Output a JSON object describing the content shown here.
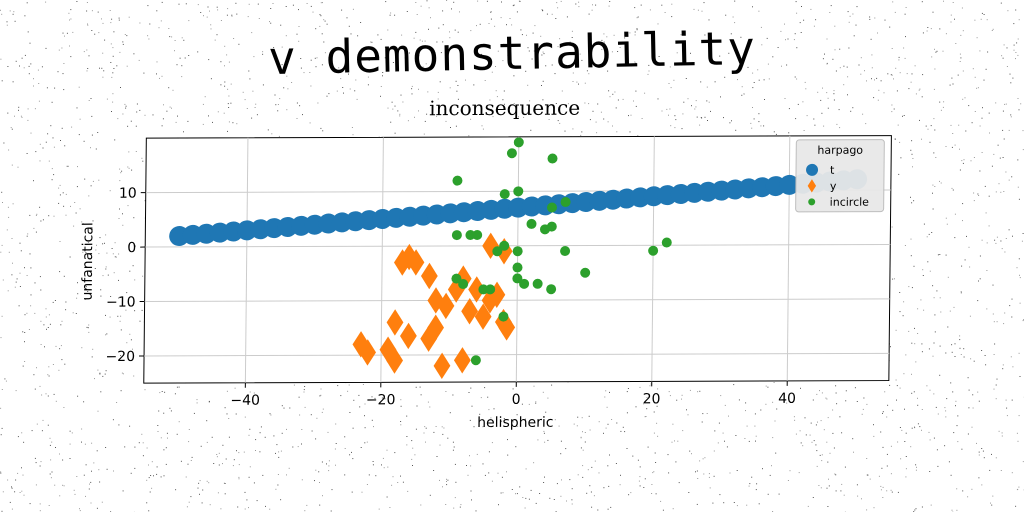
{
  "title": "v demonstrability",
  "chart_data": {
    "type": "scatter",
    "title": "inconsequence",
    "xlabel": "helispheric",
    "ylabel": "unfanatical",
    "xlim": [
      -55,
      55
    ],
    "ylim": [
      -25,
      20
    ],
    "xticks": [
      -40,
      -20,
      0,
      20,
      40
    ],
    "yticks": [
      -20,
      -10,
      0,
      10
    ],
    "grid": true,
    "legend": {
      "title": "harpago",
      "placement": "top-right"
    },
    "series": [
      {
        "name": "t",
        "marker": "circle",
        "color": "#1f77b4",
        "size": 10,
        "points": [
          [
            -50.0,
            2.0
          ],
          [
            -48.0,
            2.2
          ],
          [
            -46.0,
            2.4
          ],
          [
            -44.0,
            2.6
          ],
          [
            -42.0,
            2.8
          ],
          [
            -40.0,
            3.0
          ],
          [
            -38.0,
            3.2
          ],
          [
            -36.0,
            3.4
          ],
          [
            -34.0,
            3.6
          ],
          [
            -32.0,
            3.8
          ],
          [
            -30.0,
            4.0
          ],
          [
            -28.0,
            4.2
          ],
          [
            -26.0,
            4.4
          ],
          [
            -24.0,
            4.6
          ],
          [
            -22.0,
            4.8
          ],
          [
            -20.0,
            5.0
          ],
          [
            -18.0,
            5.2
          ],
          [
            -16.0,
            5.4
          ],
          [
            -14.0,
            5.6
          ],
          [
            -12.0,
            5.8
          ],
          [
            -10.0,
            6.0
          ],
          [
            -8.0,
            6.2
          ],
          [
            -6.0,
            6.4
          ],
          [
            -4.0,
            6.6
          ],
          [
            -2.0,
            6.8
          ],
          [
            0.0,
            7.0
          ],
          [
            2.0,
            7.2
          ],
          [
            4.0,
            7.4
          ],
          [
            6.0,
            7.6
          ],
          [
            8.0,
            7.8
          ],
          [
            10.0,
            8.0
          ],
          [
            12.0,
            8.2
          ],
          [
            14.0,
            8.4
          ],
          [
            16.0,
            8.6
          ],
          [
            18.0,
            8.8
          ],
          [
            20.0,
            9.0
          ],
          [
            22.0,
            9.2
          ],
          [
            24.0,
            9.4
          ],
          [
            26.0,
            9.6
          ],
          [
            28.0,
            9.8
          ],
          [
            30.0,
            10.0
          ],
          [
            32.0,
            10.2
          ],
          [
            34.0,
            10.4
          ],
          [
            36.0,
            10.6
          ],
          [
            38.0,
            10.8
          ],
          [
            40.0,
            11.0
          ],
          [
            42.0,
            11.2
          ],
          [
            44.0,
            11.4
          ],
          [
            46.0,
            11.6
          ],
          [
            48.0,
            11.8
          ],
          [
            50.0,
            12.0
          ]
        ]
      },
      {
        "name": "y",
        "marker": "diamond",
        "color": "#ff7f0e",
        "size": 12,
        "points": [
          [
            -23,
            -18
          ],
          [
            -22,
            -19.5
          ],
          [
            -19,
            -19
          ],
          [
            -18,
            -21
          ],
          [
            -18,
            -14
          ],
          [
            -16,
            -16.5
          ],
          [
            -13,
            -17
          ],
          [
            -12,
            -15
          ],
          [
            -11,
            -22
          ],
          [
            -10.5,
            -11
          ],
          [
            -12,
            -10
          ],
          [
            -9,
            -8
          ],
          [
            -8,
            -6
          ],
          [
            -7,
            -12
          ],
          [
            -6,
            -8
          ],
          [
            -5,
            -13
          ],
          [
            -4,
            -10
          ],
          [
            -3,
            -9
          ],
          [
            -2,
            -14
          ],
          [
            -1.5,
            -15
          ],
          [
            -17,
            -3
          ],
          [
            -16,
            -2
          ],
          [
            -15,
            -3
          ],
          [
            -13,
            -5.5
          ],
          [
            -4,
            0
          ],
          [
            -2,
            -1
          ],
          [
            -8,
            -21
          ]
        ]
      },
      {
        "name": "incircle",
        "marker": "circle",
        "color": "#2ca02c",
        "size": 5,
        "points": [
          [
            0,
            19
          ],
          [
            -1,
            17
          ],
          [
            5,
            16
          ],
          [
            -9,
            12
          ],
          [
            -2,
            9.5
          ],
          [
            0,
            10
          ],
          [
            5,
            7
          ],
          [
            7,
            8
          ],
          [
            2,
            4
          ],
          [
            5,
            3.5
          ],
          [
            4,
            3
          ],
          [
            -9,
            2
          ],
          [
            -7,
            2
          ],
          [
            -6,
            2
          ],
          [
            -2,
            0
          ],
          [
            -3,
            -1
          ],
          [
            0,
            -1
          ],
          [
            7,
            -1
          ],
          [
            10,
            -5
          ],
          [
            0,
            -4
          ],
          [
            0,
            -6
          ],
          [
            1,
            -7
          ],
          [
            3,
            -7
          ],
          [
            5,
            -8
          ],
          [
            -5,
            -8
          ],
          [
            -4,
            -8
          ],
          [
            -9,
            -6
          ],
          [
            -8,
            -7
          ],
          [
            -2,
            -13
          ],
          [
            -6,
            -21
          ],
          [
            20,
            -1
          ],
          [
            22,
            0.5
          ]
        ]
      }
    ]
  }
}
